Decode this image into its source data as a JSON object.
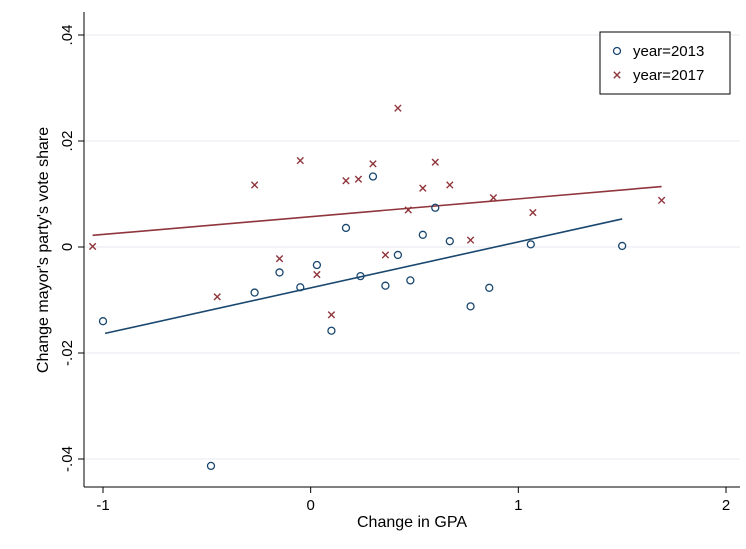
{
  "chart_data": {
    "type": "scatter",
    "xlabel": "Change in GPA",
    "ylabel": "Change mayor's party's vote share",
    "xlim": [
      -1.1,
      2.05
    ],
    "ylim": [
      -0.043,
      0.041
    ],
    "x_ticks": [
      -1,
      0,
      1,
      2
    ],
    "x_tick_labels": [
      "-1",
      "0",
      "1",
      "2"
    ],
    "y_ticks": [
      -0.04,
      -0.02,
      0,
      0.02,
      0.04
    ],
    "y_tick_labels": [
      "-.04",
      "-.02",
      "0",
      ".02",
      ".04"
    ],
    "grid": "horizontal",
    "legend_position": "top-right",
    "series": [
      {
        "name": "year=2013",
        "marker": "circle",
        "color": "#1a476f",
        "points": [
          [
            -1.0,
            -0.014
          ],
          [
            -0.48,
            -0.0413
          ],
          [
            -0.27,
            -0.0086
          ],
          [
            -0.15,
            -0.0048
          ],
          [
            -0.05,
            -0.0076
          ],
          [
            0.03,
            -0.0034
          ],
          [
            0.1,
            -0.0158
          ],
          [
            0.17,
            0.0036
          ],
          [
            0.24,
            -0.0055
          ],
          [
            0.3,
            0.0133
          ],
          [
            0.36,
            -0.0073
          ],
          [
            0.42,
            -0.0015
          ],
          [
            0.48,
            -0.0063
          ],
          [
            0.54,
            0.0023
          ],
          [
            0.6,
            0.0074
          ],
          [
            0.67,
            0.0011
          ],
          [
            0.77,
            -0.0112
          ],
          [
            0.86,
            -0.0077
          ],
          [
            1.06,
            0.0005
          ],
          [
            1.5,
            0.0002
          ]
        ],
        "fit": [
          [
            -0.99,
            -0.0163
          ],
          [
            1.5,
            0.0053
          ]
        ]
      },
      {
        "name": "year=2017",
        "marker": "x",
        "color": "#90353b",
        "points": [
          [
            -1.05,
            0.0001
          ],
          [
            -0.45,
            -0.0094
          ],
          [
            -0.27,
            0.0117
          ],
          [
            -0.15,
            -0.0022
          ],
          [
            -0.05,
            0.0163
          ],
          [
            0.03,
            -0.0052
          ],
          [
            0.1,
            -0.0128
          ],
          [
            0.17,
            0.0125
          ],
          [
            0.23,
            0.0128
          ],
          [
            0.3,
            0.0157
          ],
          [
            0.36,
            -0.0015
          ],
          [
            0.42,
            0.0262
          ],
          [
            0.47,
            0.007
          ],
          [
            0.54,
            0.0111
          ],
          [
            0.6,
            0.016
          ],
          [
            0.67,
            0.0117
          ],
          [
            0.77,
            0.0013
          ],
          [
            0.88,
            0.0093
          ],
          [
            1.07,
            0.0065
          ],
          [
            1.69,
            0.0088
          ]
        ],
        "fit": [
          [
            -1.05,
            0.0022
          ],
          [
            1.69,
            0.0114
          ]
        ]
      }
    ]
  }
}
